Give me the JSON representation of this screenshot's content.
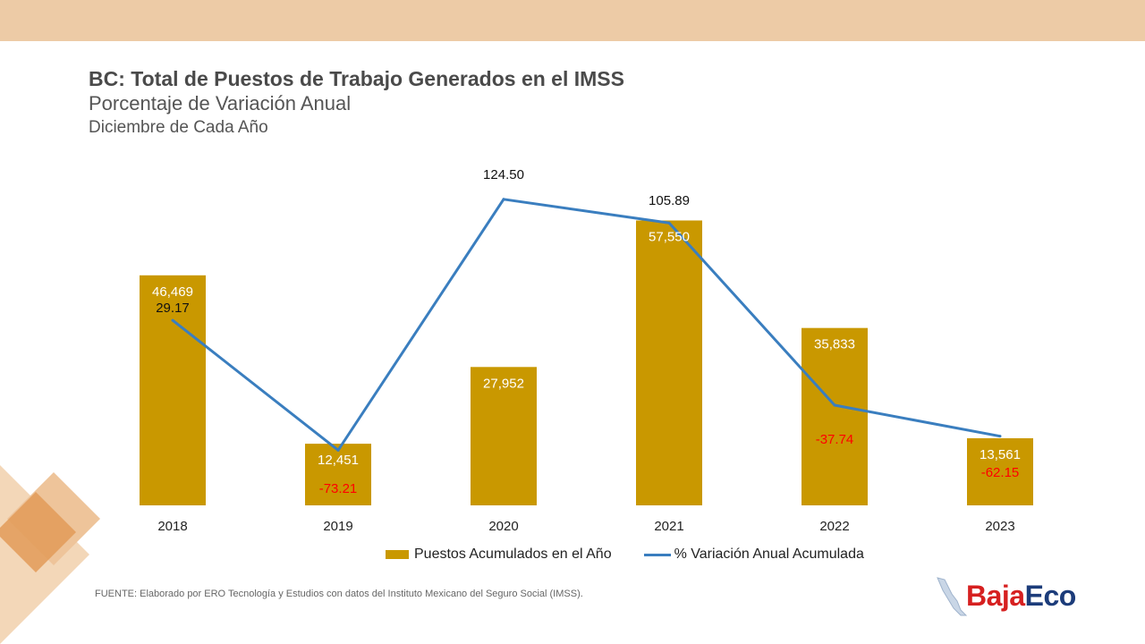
{
  "title": "BC: Total de Puestos de Trabajo Generados en el IMSS",
  "subtitle": "Porcentaje de Variación Anual",
  "subtitle2": "Diciembre de Cada Año",
  "source": "FUENTE: Elaborado por ERO Tecnología y Estudios con datos del Instituto Mexicano del Seguro Social (IMSS).",
  "logo": {
    "part1": "Baja",
    "part2": "Eco"
  },
  "colors": {
    "bar": "#c99800",
    "line": "#3a7ebf",
    "negative": "#ff0000",
    "band": "#edcba6"
  },
  "chart_data": {
    "type": "bar",
    "categories": [
      "2018",
      "2019",
      "2020",
      "2021",
      "2022",
      "2023"
    ],
    "series": [
      {
        "name": "Puestos Acumulados en el Año",
        "type": "bar",
        "values": [
          46469,
          12451,
          27952,
          57550,
          35833,
          13561
        ],
        "labels": [
          "46,469",
          "12,451",
          "27,952",
          "57,550",
          "35,833",
          "13,561"
        ]
      },
      {
        "name": "% Variación Anual Acumulada",
        "type": "line",
        "values": [
          29.17,
          -73.21,
          124.5,
          105.89,
          -37.74,
          -62.15
        ],
        "labels": [
          "29.17",
          "-73.21",
          "124.50",
          "105.89",
          "-37.74",
          "-62.15"
        ]
      }
    ],
    "bar_ylim": [
      0,
      58000
    ],
    "line_ylim": [
      -80,
      130
    ],
    "grid": false,
    "legend": "bottom"
  }
}
